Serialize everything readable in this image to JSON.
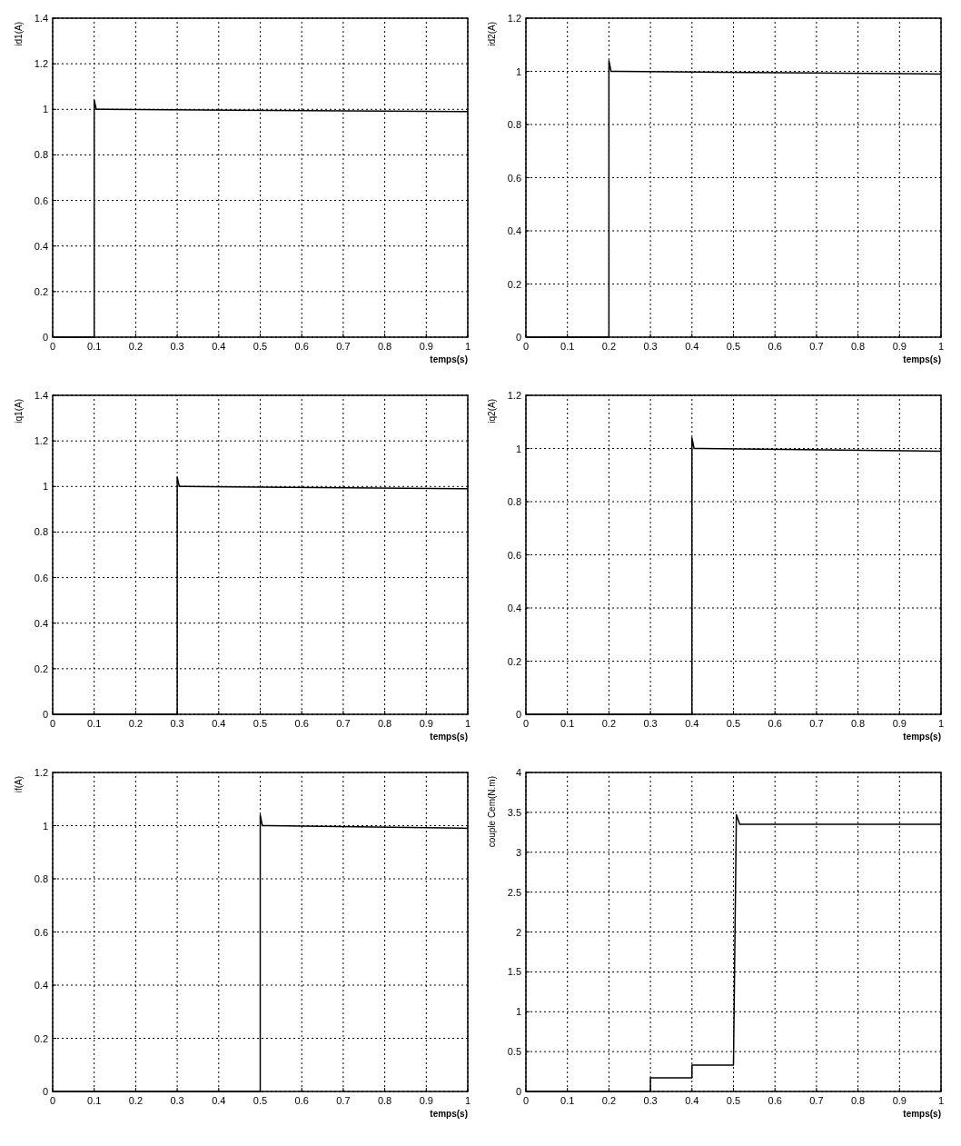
{
  "chart_data": [
    {
      "type": "line",
      "ylabel": "id1(A)",
      "xlabel": "temps(s)",
      "xlim": [
        0,
        1
      ],
      "ylim": [
        0,
        1.4
      ],
      "xticks": [
        0,
        0.1,
        0.2,
        0.3,
        0.4,
        0.5,
        0.6,
        0.7,
        0.8,
        0.9,
        1
      ],
      "yticks": [
        0,
        0.2,
        0.4,
        0.6,
        0.8,
        1,
        1.2,
        1.4
      ],
      "grid": true,
      "series": [
        {
          "color": "#000000",
          "x": [
            0,
            0.1,
            0.1,
            0.105,
            0.12,
            1
          ],
          "values": [
            0,
            0,
            1.04,
            1,
            1,
            0.99
          ]
        }
      ]
    },
    {
      "type": "line",
      "ylabel": "id2(A)",
      "xlabel": "temps(s)",
      "xlim": [
        0,
        1
      ],
      "ylim": [
        0,
        1.2
      ],
      "xticks": [
        0,
        0.1,
        0.2,
        0.3,
        0.4,
        0.5,
        0.6,
        0.7,
        0.8,
        0.9,
        1
      ],
      "yticks": [
        0,
        0.2,
        0.4,
        0.6,
        0.8,
        1,
        1.2
      ],
      "grid": true,
      "series": [
        {
          "color": "#000000",
          "x": [
            0,
            0.2,
            0.2,
            0.205,
            0.22,
            1
          ],
          "values": [
            0,
            0,
            1.04,
            1,
            1,
            0.99
          ]
        }
      ]
    },
    {
      "type": "line",
      "ylabel": "iq1(A)",
      "xlabel": "temps(s)",
      "xlim": [
        0,
        1
      ],
      "ylim": [
        0,
        1.4
      ],
      "xticks": [
        0,
        0.1,
        0.2,
        0.3,
        0.4,
        0.5,
        0.6,
        0.7,
        0.8,
        0.9,
        1
      ],
      "yticks": [
        0,
        0.2,
        0.4,
        0.6,
        0.8,
        1,
        1.2,
        1.4
      ],
      "grid": true,
      "series": [
        {
          "color": "#000000",
          "x": [
            0,
            0.3,
            0.3,
            0.305,
            0.32,
            1
          ],
          "values": [
            0,
            0,
            1.04,
            1,
            1,
            0.99
          ]
        }
      ]
    },
    {
      "type": "line",
      "ylabel": "iq2(A)",
      "xlabel": "temps(s)",
      "xlim": [
        0,
        1
      ],
      "ylim": [
        0,
        1.2
      ],
      "xticks": [
        0,
        0.1,
        0.2,
        0.3,
        0.4,
        0.5,
        0.6,
        0.7,
        0.8,
        0.9,
        1
      ],
      "yticks": [
        0,
        0.2,
        0.4,
        0.6,
        0.8,
        1,
        1.2
      ],
      "grid": true,
      "series": [
        {
          "color": "#000000",
          "x": [
            0,
            0.4,
            0.4,
            0.405,
            0.42,
            1
          ],
          "values": [
            0,
            0,
            1.04,
            1,
            1,
            0.99
          ]
        }
      ]
    },
    {
      "type": "line",
      "ylabel": "if(A)",
      "xlabel": "temps(s)",
      "xlim": [
        0,
        1
      ],
      "ylim": [
        0,
        1.2
      ],
      "xticks": [
        0,
        0.1,
        0.2,
        0.3,
        0.4,
        0.5,
        0.6,
        0.7,
        0.8,
        0.9,
        1
      ],
      "yticks": [
        0,
        0.2,
        0.4,
        0.6,
        0.8,
        1,
        1.2
      ],
      "grid": true,
      "series": [
        {
          "color": "#000000",
          "x": [
            0,
            0.5,
            0.5,
            0.505,
            0.52,
            1
          ],
          "values": [
            0,
            0,
            1.04,
            1,
            1,
            0.99
          ]
        }
      ]
    },
    {
      "type": "line",
      "ylabel": "couple Cem(N.m)",
      "xlabel": "temps(s)",
      "xlim": [
        0,
        1
      ],
      "ylim": [
        0,
        4
      ],
      "xticks": [
        0,
        0.1,
        0.2,
        0.3,
        0.4,
        0.5,
        0.6,
        0.7,
        0.8,
        0.9,
        1
      ],
      "yticks": [
        0,
        0.5,
        1,
        1.5,
        2,
        2.5,
        3,
        3.5,
        4
      ],
      "grid": true,
      "series": [
        {
          "color": "#000000",
          "x": [
            0,
            0.3,
            0.3,
            0.4,
            0.4,
            0.5,
            0.507,
            0.515,
            1
          ],
          "values": [
            0,
            0,
            0.17,
            0.17,
            0.33,
            0.33,
            3.47,
            3.35,
            3.35
          ]
        }
      ]
    }
  ]
}
